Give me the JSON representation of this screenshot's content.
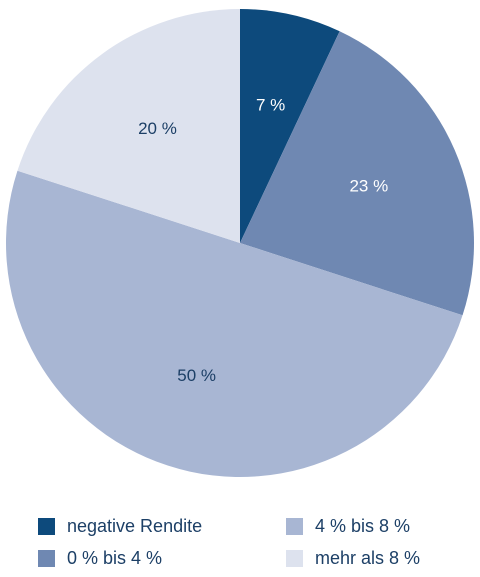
{
  "chart_data": {
    "type": "pie",
    "title": "",
    "slices": [
      {
        "name": "negative Rendite",
        "value": 7,
        "label": "7 %",
        "color": "#0d4a7c",
        "label_color": "#ffffff"
      },
      {
        "name": "0 % bis 4 %",
        "value": 23,
        "label": "23 %",
        "color": "#6f88b2",
        "label_color": "#ffffff"
      },
      {
        "name": "4 % bis 8 %",
        "value": 50,
        "label": "50 %",
        "color": "#a8b6d3",
        "label_color": "#1c3f66"
      },
      {
        "name": "mehr als 8 %",
        "value": 20,
        "label": "20 %",
        "color": "#dde2ee",
        "label_color": "#1c3f66"
      }
    ],
    "start_angle": "top (12 o'clock), clockwise",
    "legend": {
      "placement": "bottom",
      "items": [
        {
          "label": "negative Rendite",
          "color": "#0d4a7c"
        },
        {
          "label": "0 % bis 4 %",
          "color": "#6f88b2"
        },
        {
          "label": "4 % bis 8 %",
          "color": "#a8b6d3"
        },
        {
          "label": "mehr als 8 %",
          "color": "#dde2ee"
        }
      ]
    }
  }
}
